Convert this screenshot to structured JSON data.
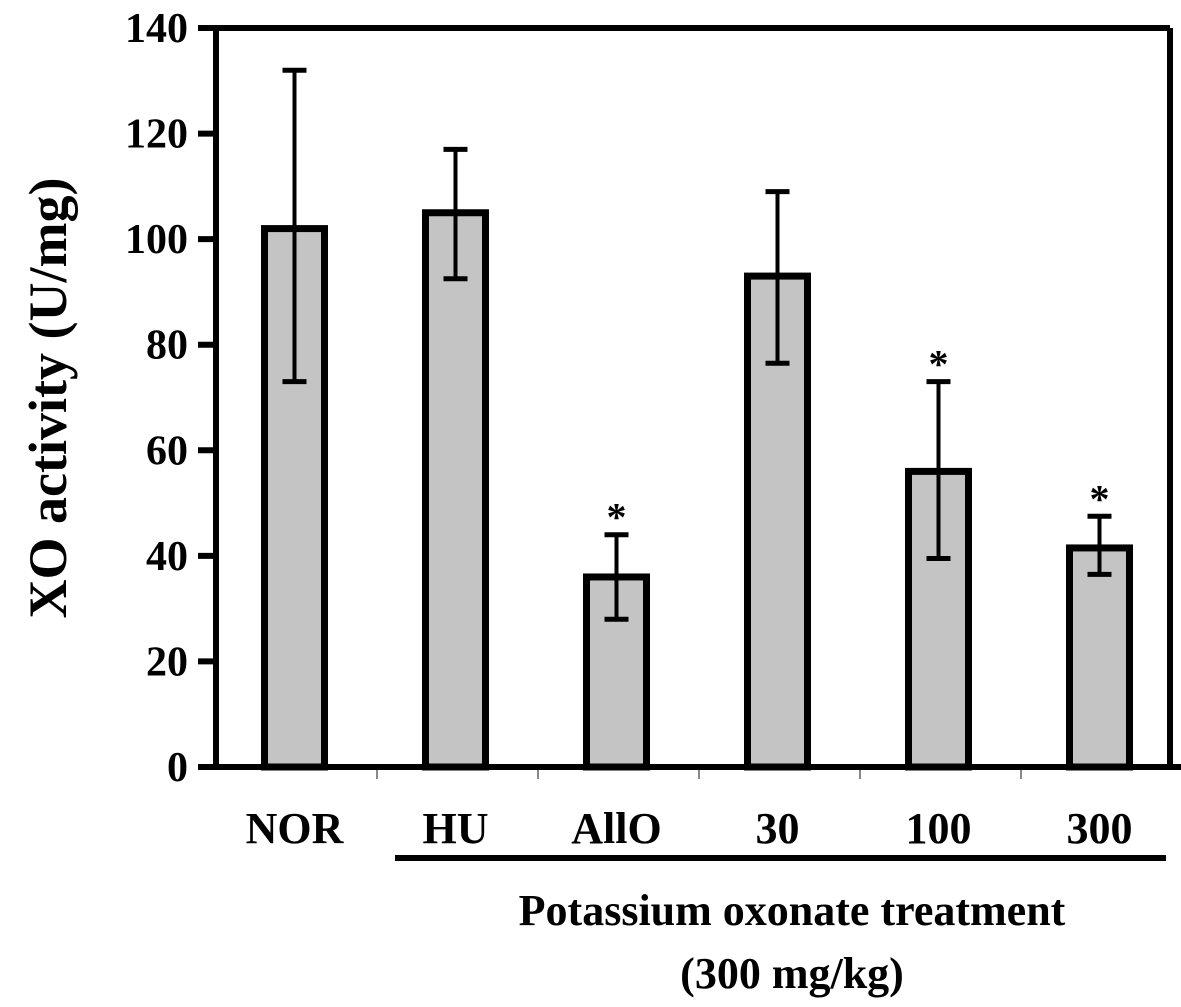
{
  "chart_data": {
    "type": "bar",
    "title": "",
    "xlabel": "",
    "ylabel": "XO activity (U/mg)",
    "ylim": [
      0,
      140
    ],
    "yticks": [
      0,
      20,
      40,
      60,
      80,
      100,
      120,
      140
    ],
    "grid": false,
    "categories": [
      "NOR",
      "HU",
      "AllO",
      "30",
      "100",
      "300"
    ],
    "values": [
      102,
      105,
      36,
      93,
      56,
      41.5
    ],
    "error_upper": [
      132,
      117,
      44,
      109,
      73,
      47.5
    ],
    "error_lower": [
      73,
      92.5,
      28,
      76.5,
      39.5,
      36.5
    ],
    "significance": [
      "",
      "",
      "*",
      "",
      "*",
      "*"
    ],
    "bar_color": "#c4c4c4",
    "group_annotation": {
      "line1": "Potassium oxonate treatment",
      "line2": "(300 mg/kg)",
      "spans_categories": [
        "HU",
        "AllO",
        "30",
        "100",
        "300"
      ]
    }
  }
}
